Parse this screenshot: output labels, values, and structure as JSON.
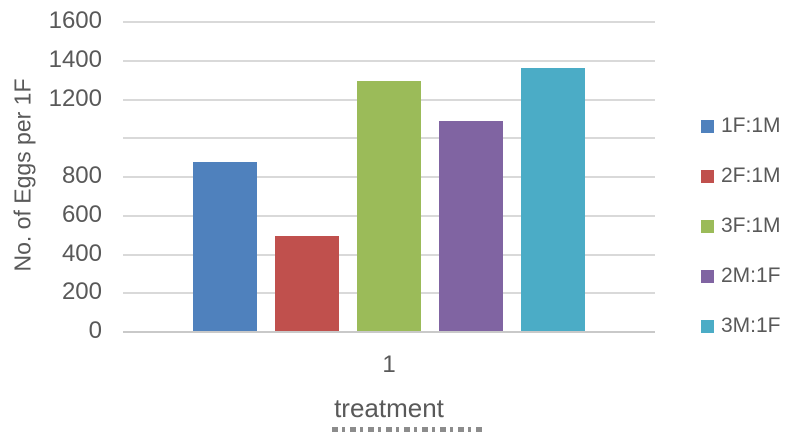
{
  "chart_data": {
    "type": "bar",
    "title": "",
    "xlabel": "treatment",
    "ylabel": "No. of Eggs per 1F",
    "categories": [
      "1"
    ],
    "series": [
      {
        "name": "1F:1M",
        "color": "#4F81BD",
        "values": [
          870
        ]
      },
      {
        "name": "2F:1M",
        "color": "#C0504D",
        "values": [
          490
        ]
      },
      {
        "name": "3F:1M",
        "color": "#9BBB59",
        "values": [
          1290
        ]
      },
      {
        "name": "2M:1F",
        "color": "#8064A2",
        "values": [
          1085
        ]
      },
      {
        "name": "3M:1F",
        "color": "#4BACC6",
        "values": [
          1355
        ]
      }
    ],
    "ylim": [
      0,
      1600
    ],
    "ytick_step": 200,
    "ytick_labels": [
      "0",
      "200",
      "400",
      "600",
      "800",
      "",
      "1200",
      "1400",
      "1600"
    ],
    "grid": true,
    "legend_position": "right"
  },
  "colors": {
    "text": "#595959",
    "gridline": "#D9D9D9",
    "axis_line": "#C9C9C9",
    "background": "#FFFFFF"
  },
  "notes": {
    "missing_ytick": "gridline at 1000 has no label",
    "clipped_caption": "unreadable text line cut off at bottom edge"
  }
}
